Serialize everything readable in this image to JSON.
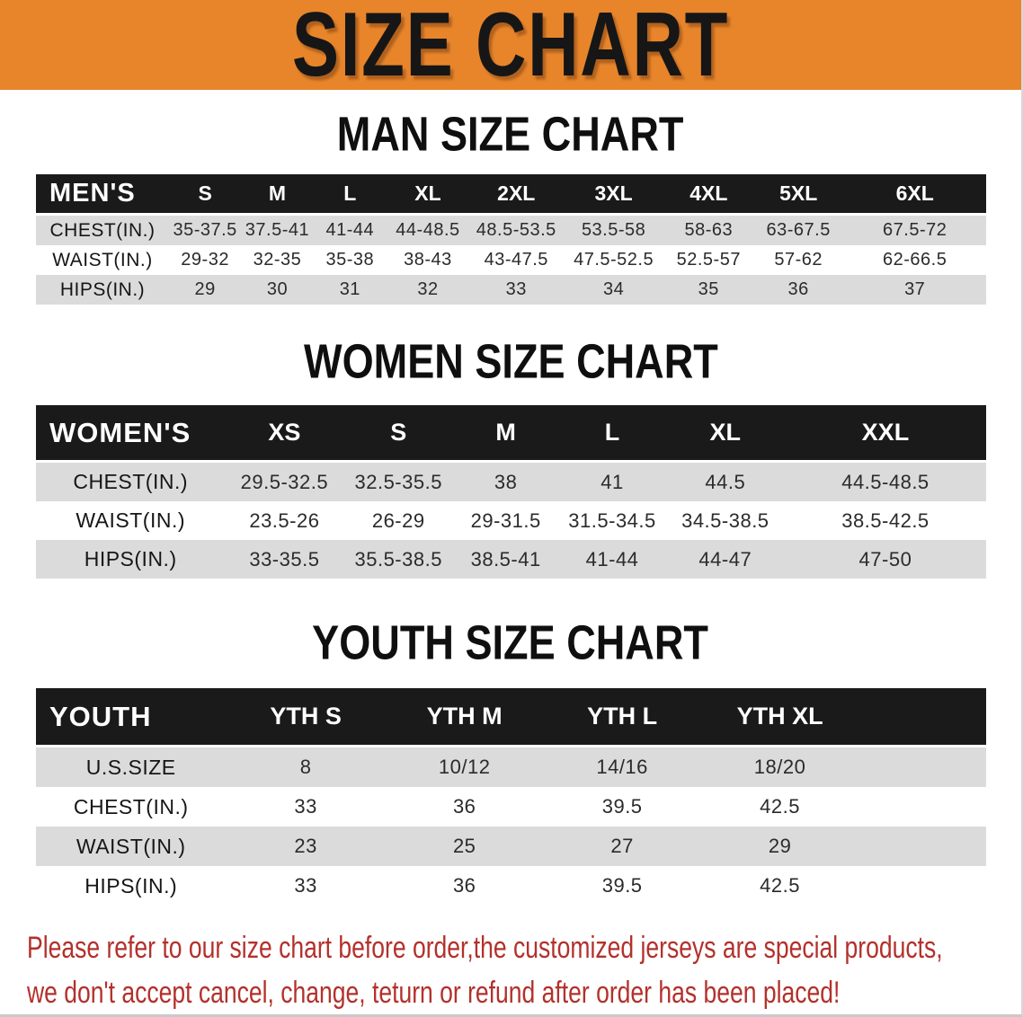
{
  "banner": {
    "title": "SIZE CHART"
  },
  "colors": {
    "banner-bg": "#E8852B",
    "bar-bg": "#1a1a1a",
    "row-gray": "#dbdbdb",
    "notice-red": "#b3312c"
  },
  "sections": [
    {
      "heading": "MAN SIZE CHART",
      "label": "MEN'S",
      "columns": [
        "S",
        "M",
        "L",
        "XL",
        "2XL",
        "3XL",
        "4XL",
        "5XL",
        "6XL"
      ],
      "rows": [
        {
          "label": "CHEST(IN.)",
          "values": [
            "35-37.5",
            "37.5-41",
            "41-44",
            "44-48.5",
            "48.5-53.5",
            "53.5-58",
            "58-63",
            "63-67.5",
            "67.5-72"
          ]
        },
        {
          "label": "WAIST(IN.)",
          "values": [
            "29-32",
            "32-35",
            "35-38",
            "38-43",
            "43-47.5",
            "47.5-52.5",
            "52.5-57",
            "57-62",
            "62-66.5"
          ]
        },
        {
          "label": "HIPS(IN.)",
          "values": [
            "29",
            "30",
            "31",
            "32",
            "33",
            "34",
            "35",
            "36",
            "37"
          ]
        }
      ]
    },
    {
      "heading": "WOMEN SIZE CHART",
      "label": "WOMEN'S",
      "columns": [
        "XS",
        "S",
        "M",
        "L",
        "XL",
        "XXL"
      ],
      "rows": [
        {
          "label": "CHEST(IN.)",
          "values": [
            "29.5-32.5",
            "32.5-35.5",
            "38",
            "41",
            "44.5",
            "44.5-48.5"
          ]
        },
        {
          "label": "WAIST(IN.)",
          "values": [
            "23.5-26",
            "26-29",
            "29-31.5",
            "31.5-34.5",
            "34.5-38.5",
            "38.5-42.5"
          ]
        },
        {
          "label": "HIPS(IN.)",
          "values": [
            "33-35.5",
            "35.5-38.5",
            "38.5-41",
            "41-44",
            "44-47",
            "47-50"
          ]
        }
      ]
    },
    {
      "heading": "YOUTH SIZE CHART",
      "label": "YOUTH",
      "columns": [
        "YTH S",
        "YTH M",
        "YTH L",
        "YTH XL"
      ],
      "rows": [
        {
          "label": "U.S.SIZE",
          "values": [
            "8",
            "10/12",
            "14/16",
            "18/20"
          ]
        },
        {
          "label": "CHEST(IN.)",
          "values": [
            "33",
            "36",
            "39.5",
            "42.5"
          ]
        },
        {
          "label": "WAIST(IN.)",
          "values": [
            "23",
            "25",
            "27",
            "29"
          ]
        },
        {
          "label": "HIPS(IN.)",
          "values": [
            "33",
            "36",
            "39.5",
            "42.5"
          ]
        }
      ]
    }
  ],
  "footer": {
    "line1": "Please refer to our size chart before order,the customized jerseys are special products,",
    "line2": "we don't accept cancel, change, teturn or refund after order has been placed!"
  }
}
